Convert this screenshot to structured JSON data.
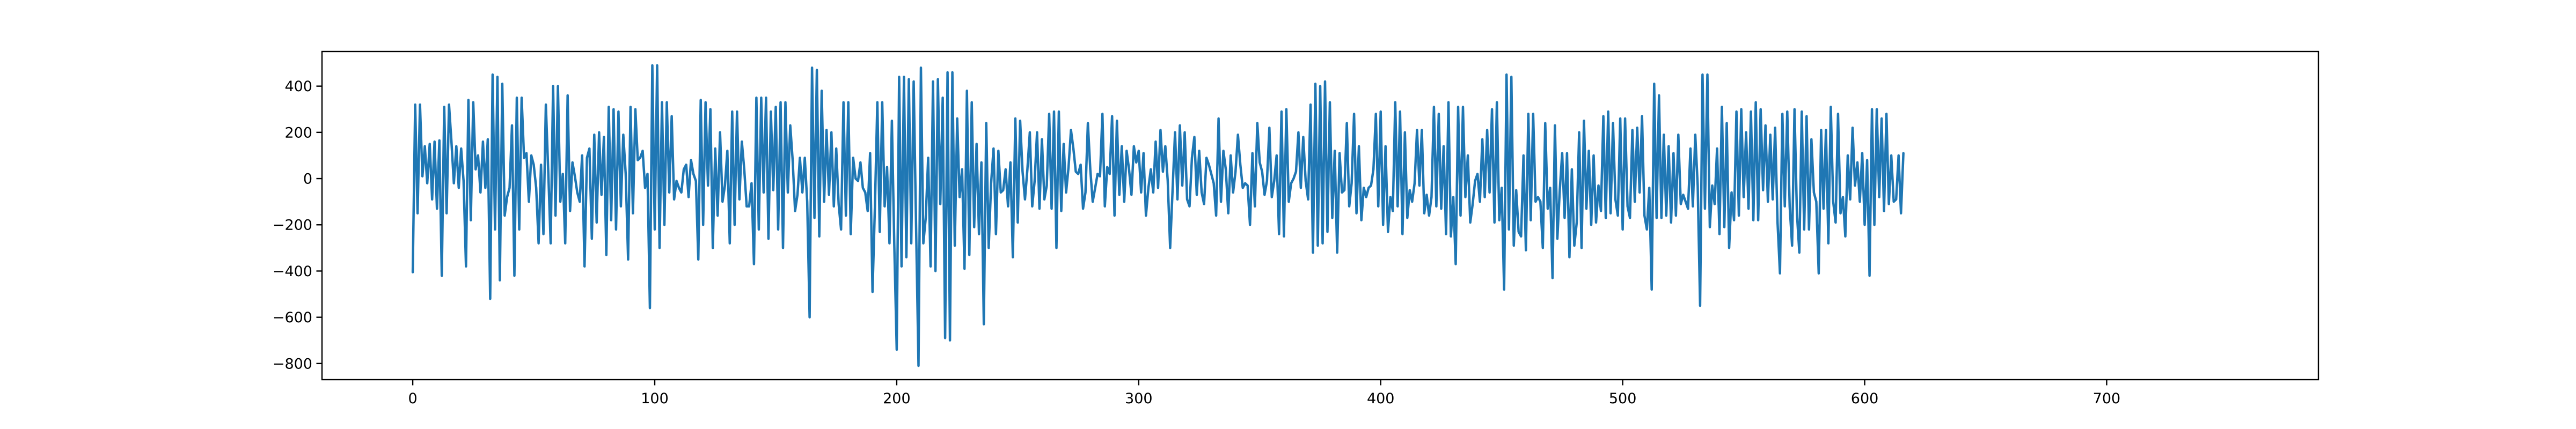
{
  "chart_data": {
    "type": "line",
    "title": "",
    "xlabel": "",
    "ylabel": "",
    "xlim": [
      -37.5,
      787.5
    ],
    "ylim": [
      -870,
      550
    ],
    "xticks": [
      0,
      100,
      200,
      300,
      400,
      500,
      600,
      700
    ],
    "xtick_labels": [
      "0",
      "100",
      "200",
      "300",
      "400",
      "500",
      "600",
      "700"
    ],
    "yticks": [
      -800,
      -600,
      -400,
      -200,
      0,
      200,
      400
    ],
    "ytick_labels": [
      "−800",
      "−600",
      "−400",
      "−200",
      "0",
      "200",
      "400"
    ],
    "grid": false,
    "legend": "none",
    "series": [
      {
        "color": "#1f77b4",
        "x_start": 0,
        "x_step": 1,
        "values": [
          -405,
          320,
          -150,
          320,
          10,
          140,
          -20,
          150,
          -90,
          160,
          -130,
          165,
          -420,
          310,
          -150,
          320,
          160,
          -20,
          140,
          -40,
          130,
          -10,
          -380,
          340,
          -180,
          330,
          40,
          100,
          -60,
          160,
          -40,
          170,
          -520,
          450,
          -220,
          440,
          -440,
          410,
          -160,
          -80,
          -40,
          230,
          -420,
          350,
          -220,
          350,
          90,
          110,
          -100,
          100,
          60,
          -40,
          -280,
          60,
          -240,
          320,
          30,
          -280,
          400,
          -160,
          400,
          -100,
          20,
          -280,
          360,
          -140,
          70,
          10,
          -60,
          -100,
          100,
          -380,
          90,
          130,
          -260,
          190,
          -190,
          200,
          -70,
          180,
          -330,
          310,
          -180,
          300,
          -220,
          290,
          -120,
          190,
          20,
          -350,
          310,
          -150,
          300,
          80,
          90,
          120,
          -40,
          20,
          -560,
          490,
          -220,
          490,
          -300,
          330,
          -200,
          330,
          -60,
          270,
          -90,
          -10,
          -40,
          -60,
          40,
          60,
          -80,
          80,
          20,
          -10,
          -350,
          340,
          -200,
          330,
          -30,
          300,
          -300,
          130,
          -160,
          200,
          -100,
          -30,
          120,
          -280,
          290,
          -200,
          290,
          -90,
          160,
          40,
          -120,
          -120,
          -20,
          -370,
          350,
          -220,
          350,
          -60,
          350,
          -260,
          290,
          -50,
          310,
          -220,
          330,
          -300,
          330,
          -60,
          230,
          80,
          -140,
          -70,
          90,
          -60,
          90,
          -100,
          -600,
          480,
          -170,
          470,
          -250,
          380,
          -100,
          210,
          -70,
          200,
          -120,
          130,
          -110,
          -220,
          330,
          -160,
          330,
          -240,
          90,
          0,
          -10,
          70,
          -40,
          -60,
          -140,
          110,
          -490,
          -120,
          330,
          -230,
          330,
          -120,
          50,
          -280,
          250,
          -290,
          -740,
          440,
          -380,
          440,
          -340,
          430,
          -280,
          420,
          -210,
          -810,
          480,
          -280,
          -170,
          90,
          -380,
          420,
          -400,
          430,
          -110,
          350,
          -690,
          460,
          -700,
          460,
          -290,
          260,
          -80,
          40,
          -390,
          380,
          -330,
          330,
          -210,
          150,
          -240,
          70,
          -630,
          240,
          -300,
          -20,
          130,
          -240,
          120,
          -60,
          -50,
          40,
          -120,
          70,
          -340,
          260,
          -190,
          250,
          30,
          -90,
          40,
          200,
          -120,
          -10,
          200,
          -130,
          170,
          -90,
          -30,
          280,
          -130,
          290,
          -300,
          290,
          -140,
          150,
          -60,
          50,
          210,
          130,
          30,
          20,
          60,
          -130,
          -60,
          240,
          40,
          -100,
          -40,
          20,
          10,
          280,
          -120,
          50,
          20,
          270,
          -160,
          250,
          -70,
          140,
          -100,
          120,
          40,
          -70,
          140,
          70,
          120,
          -60,
          110,
          -160,
          -40,
          40,
          -60,
          160,
          -40,
          210,
          30,
          140,
          -10,
          -300,
          -50,
          200,
          -90,
          230,
          -30,
          200,
          -90,
          -120,
          90,
          180,
          -70,
          120,
          -60,
          -110,
          90,
          60,
          20,
          -20,
          -160,
          260,
          -100,
          120,
          40,
          -150,
          100,
          -60,
          30,
          190,
          60,
          -40,
          -20,
          -30,
          -200,
          110,
          -120,
          240,
          70,
          30,
          -70,
          -10,
          220,
          -80,
          -10,
          100,
          -240,
          290,
          -250,
          300,
          -100,
          -20,
          0,
          30,
          200,
          -40,
          180,
          -10,
          -90,
          320,
          -320,
          410,
          -290,
          400,
          -280,
          420,
          -230,
          330,
          -170,
          120,
          -320,
          110,
          -60,
          -50,
          240,
          -120,
          -20,
          280,
          -150,
          140,
          -180,
          -40,
          -80,
          -40,
          -30,
          40,
          280,
          -120,
          290,
          -200,
          140,
          -230,
          -80,
          -140,
          330,
          -120,
          290,
          -240,
          200,
          -170,
          -50,
          -100,
          -20,
          210,
          -30,
          210,
          -150,
          -70,
          -160,
          -80,
          310,
          -120,
          280,
          -130,
          140,
          -240,
          330,
          -250,
          -80,
          -370,
          310,
          -160,
          310,
          -80,
          100,
          -190,
          -110,
          -10,
          20,
          -100,
          170,
          -80,
          210,
          -60,
          300,
          -190,
          330,
          -180,
          -40,
          -480,
          450,
          -220,
          440,
          -290,
          -50,
          -230,
          -250,
          100,
          -310,
          280,
          -180,
          280,
          -100,
          -80,
          -100,
          -300,
          240,
          -130,
          -40,
          -430,
          230,
          -260,
          -50,
          110,
          -170,
          110,
          -340,
          40,
          -290,
          -190,
          200,
          -300,
          250,
          -130,
          120,
          -200,
          100,
          -190,
          -30,
          -140,
          270,
          -170,
          290,
          -150,
          240,
          -90,
          -160,
          260,
          -220,
          260,
          -120,
          -170,
          210,
          -100,
          220,
          -60,
          270,
          -160,
          -220,
          -40,
          -480,
          410,
          -170,
          360,
          -170,
          190,
          -160,
          140,
          -190,
          110,
          -160,
          190,
          -110,
          -70,
          -100,
          -130,
          130,
          -120,
          190,
          -30,
          -550,
          450,
          -130,
          450,
          -210,
          -30,
          -110,
          130,
          -240,
          310,
          -210,
          240,
          -300,
          -60,
          -180,
          290,
          -160,
          300,
          -80,
          200,
          -130,
          290,
          -180,
          330,
          -180,
          300,
          -50,
          230,
          -100,
          190,
          -90,
          220,
          -190,
          -410,
          280,
          -120,
          290,
          -120,
          -290,
          300,
          -150,
          -320,
          290,
          -220,
          270,
          -220,
          170,
          -60,
          -100,
          -410,
          210,
          -130,
          210,
          -280,
          310,
          -100,
          -190,
          280,
          -150,
          -80,
          -250,
          100,
          -90,
          220,
          -30,
          70,
          -100,
          110,
          -200,
          80,
          -420,
          300,
          -200,
          300,
          -80,
          260,
          -140,
          280,
          -110,
          100,
          -100,
          -90,
          100,
          -150,
          110
        ]
      }
    ]
  }
}
